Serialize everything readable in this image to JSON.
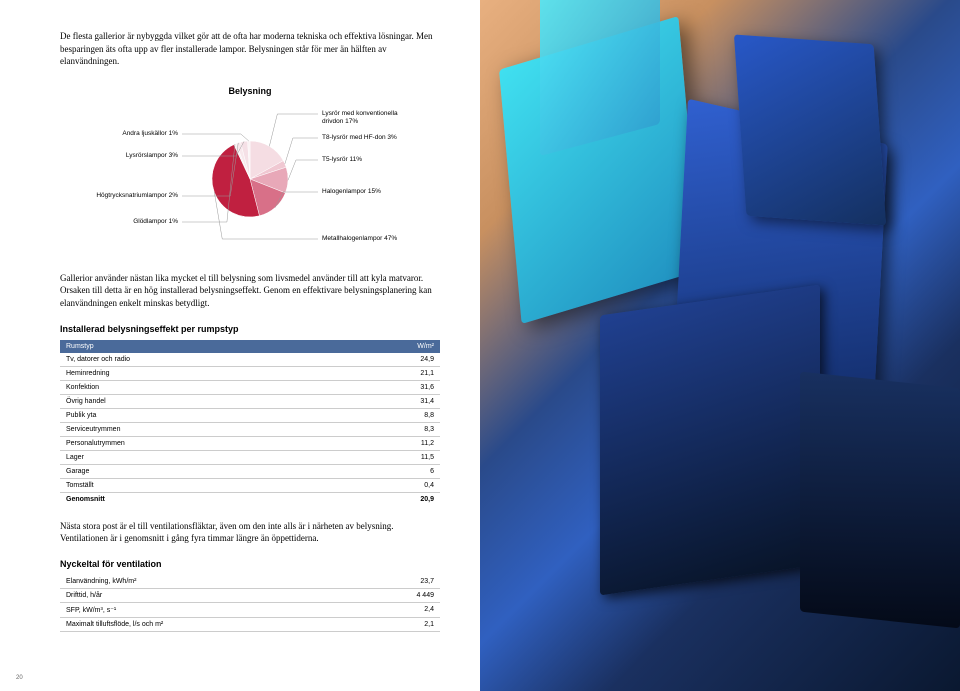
{
  "page_number": "20",
  "intro": "De flesta gallerior är nybyggda vilket gör att de ofta har moderna tekniska och effektiva lösningar. Men besparingen äts ofta upp av fler installerade lampor. Belysningen står för mer än hälften av elanvändningen.",
  "chart": {
    "title": "Belysning",
    "type": "pie",
    "slices": [
      {
        "label": "Lysrör med konventionella drivdon 17%",
        "value": 17,
        "color": "#f5dde3"
      },
      {
        "label": "T8-lysrör med HF-don 3%",
        "value": 3,
        "color": "#f0c8d2"
      },
      {
        "label": "T5-lysrör 11%",
        "value": 11,
        "color": "#e8a8b8"
      },
      {
        "label": "Halogenlampor 15%",
        "value": 15,
        "color": "#d87088"
      },
      {
        "label": "Metallhalogenlampor 47%",
        "value": 47,
        "color": "#c02040"
      },
      {
        "label": "Glödlampor 1%",
        "value": 1,
        "color": "#f8f0f2"
      },
      {
        "label": "Högtrycksnatriumlampor 2%",
        "value": 2,
        "color": "#f8e8ec"
      },
      {
        "label": "Lysrörslampor 3%",
        "value": 3,
        "color": "#f5e0e6"
      },
      {
        "label": "Andra ljuskällor 1%",
        "value": 1,
        "color": "#faf2f4"
      }
    ],
    "bg": "#ffffff",
    "stroke": "#ffffff"
  },
  "body1": "Gallerior använder nästan lika mycket el till belysning som livsmedel använder till att kyla matvaror. Orsaken till detta är en hög installerad belysningseffekt. Genom en effektivare belysningsplanering kan elanvändningen enkelt minskas betydligt.",
  "table1": {
    "title": "Installerad belysningseffekt per rumpstyp",
    "headers": [
      "Rumstyp",
      "W/m²"
    ],
    "rows": [
      [
        "Tv, datorer och radio",
        "24,9"
      ],
      [
        "Heminredning",
        "21,1"
      ],
      [
        "Konfektion",
        "31,6"
      ],
      [
        "Övrig handel",
        "31,4"
      ],
      [
        "Publik yta",
        "8,8"
      ],
      [
        "Serviceutrymmen",
        "8,3"
      ],
      [
        "Personalutrymmen",
        "11,2"
      ],
      [
        "Lager",
        "11,5"
      ],
      [
        "Garage",
        "6"
      ],
      [
        "Tomställt",
        "0,4"
      ]
    ],
    "total": [
      "Genomsnitt",
      "20,9"
    ]
  },
  "body2": "Nästa stora post är el till ventilationsfläktar, även om den inte alls är i närheten av belysning. Ventilationen är i genomsnitt i gång fyra timmar längre än öppettiderna.",
  "table2": {
    "title": "Nyckeltal för ventilation",
    "rows": [
      [
        "Elanvändning, kWh/m²",
        "23,7"
      ],
      [
        "Drifttid, h/år",
        "4 449"
      ],
      [
        "SFP, kW/m³, s⁻¹",
        "2,4"
      ],
      [
        "Maximalt tilluftsflöde, l/s och m²",
        "2,1"
      ]
    ]
  },
  "photo": {
    "bg_gradient": [
      "#e8b080",
      "#c89060",
      "#2a4a8a",
      "#3060c0",
      "#1a3060",
      "#0a1830"
    ],
    "accent_cyan": "#30d0e0",
    "accent_blue": "#2050c0",
    "accent_dark": "#102040"
  }
}
